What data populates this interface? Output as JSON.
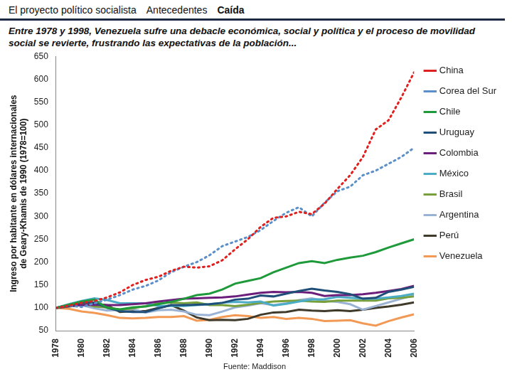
{
  "header": {
    "items": [
      "El proyecto político socialista",
      "Antecedentes",
      "Caída"
    ],
    "active": "Caída"
  },
  "chart_data": {
    "type": "line",
    "subtitle": "Entre 1978 y 1998, Venezuela sufre una debacle económica, social y política y el proceso de movilidad social se revierte, frustrando las expectativas de la población...",
    "y_label": "Ingreso por habitante en dólares internacionales de Geary-Khamis de 1990 (1978=100)",
    "source": "Fuente: Maddison",
    "x": [
      1978,
      1979,
      1980,
      1981,
      1982,
      1983,
      1984,
      1985,
      1986,
      1987,
      1988,
      1989,
      1990,
      1991,
      1992,
      1993,
      1994,
      1995,
      1996,
      1997,
      1998,
      1999,
      2000,
      2001,
      2002,
      2003,
      2004,
      2005,
      2006
    ],
    "xlim": [
      1978,
      2006
    ],
    "xticks": [
      1978,
      1980,
      1982,
      1984,
      1986,
      1988,
      1990,
      1992,
      1994,
      1996,
      1998,
      2000,
      2002,
      2004,
      2006
    ],
    "ylim": [
      50,
      650
    ],
    "yticks": [
      50,
      100,
      150,
      200,
      250,
      300,
      350,
      400,
      450,
      500,
      550,
      600,
      650
    ],
    "grid": false,
    "legend": "right",
    "series": [
      {
        "name": "China",
        "color": "#e0201e",
        "line_style": "dotted",
        "values": [
          100,
          105,
          111,
          115,
          123,
          134,
          150,
          161,
          168,
          181,
          190,
          188,
          191,
          204,
          228,
          250,
          277,
          297,
          300,
          310,
          305,
          328,
          360,
          390,
          430,
          490,
          510,
          560,
          615
        ]
      },
      {
        "name": "Corea del Sur",
        "color": "#5b8fc9",
        "line_style": "dotted",
        "values": [
          100,
          105,
          102,
          110,
          118,
          128,
          140,
          148,
          160,
          178,
          190,
          200,
          215,
          235,
          245,
          255,
          270,
          290,
          308,
          320,
          300,
          330,
          355,
          365,
          390,
          400,
          415,
          430,
          450
        ]
      },
      {
        "name": "Chile",
        "color": "#1e9a3a",
        "line_style": "solid",
        "values": [
          100,
          107,
          114,
          118,
          100,
          97,
          101,
          103,
          108,
          113,
          120,
          128,
          131,
          140,
          153,
          159,
          165,
          178,
          188,
          198,
          202,
          198,
          205,
          210,
          214,
          222,
          232,
          241,
          250
        ]
      },
      {
        "name": "Uruguay",
        "color": "#1f4e79",
        "line_style": "solid",
        "values": [
          100,
          106,
          111,
          112,
          100,
          93,
          91,
          91,
          99,
          106,
          106,
          107,
          108,
          111,
          118,
          120,
          127,
          125,
          131,
          137,
          142,
          138,
          135,
          130,
          120,
          122,
          135,
          140,
          146
        ]
      },
      {
        "name": "Colombia",
        "color": "#6b1f7b",
        "line_style": "solid",
        "values": [
          100,
          104,
          106,
          107,
          106,
          106,
          108,
          110,
          114,
          117,
          120,
          121,
          122,
          123,
          125,
          129,
          133,
          135,
          134,
          135,
          133,
          126,
          128,
          128,
          130,
          133,
          137,
          141,
          148
        ]
      },
      {
        "name": "México",
        "color": "#4bacc6",
        "line_style": "solid",
        "values": [
          100,
          108,
          115,
          121,
          117,
          110,
          110,
          110,
          104,
          104,
          104,
          106,
          108,
          111,
          113,
          112,
          114,
          105,
          109,
          114,
          118,
          119,
          124,
          122,
          120,
          120,
          123,
          126,
          131
        ]
      },
      {
        "name": "Brasil",
        "color": "#77a03b",
        "line_style": "solid",
        "values": [
          100,
          104,
          111,
          103,
          101,
          96,
          99,
          104,
          110,
          112,
          110,
          112,
          106,
          106,
          104,
          107,
          111,
          114,
          115,
          116,
          114,
          113,
          116,
          116,
          116,
          116,
          121,
          122,
          125
        ]
      },
      {
        "name": "Argentina",
        "color": "#9ab3d5",
        "line_style": "solid",
        "values": [
          100,
          106,
          106,
          99,
          94,
          96,
          97,
          90,
          95,
          96,
          92,
          85,
          84,
          92,
          101,
          105,
          110,
          106,
          110,
          117,
          121,
          115,
          113,
          108,
          96,
          104,
          112,
          120,
          128
        ]
      },
      {
        "name": "Perú",
        "color": "#3f3a2a",
        "line_style": "solid",
        "values": [
          100,
          103,
          106,
          109,
          106,
          91,
          93,
          93,
          100,
          106,
          94,
          79,
          73,
          74,
          73,
          76,
          85,
          90,
          91,
          96,
          94,
          93,
          95,
          93,
          96,
          100,
          103,
          107,
          112
        ]
      },
      {
        "name": "Venezuela",
        "color": "#f29a55",
        "line_style": "solid",
        "values": [
          100,
          98,
          92,
          89,
          84,
          78,
          77,
          78,
          80,
          80,
          82,
          72,
          74,
          80,
          84,
          82,
          78,
          80,
          76,
          78,
          76,
          71,
          72,
          73,
          66,
          61,
          71,
          79,
          86
        ]
      }
    ]
  }
}
